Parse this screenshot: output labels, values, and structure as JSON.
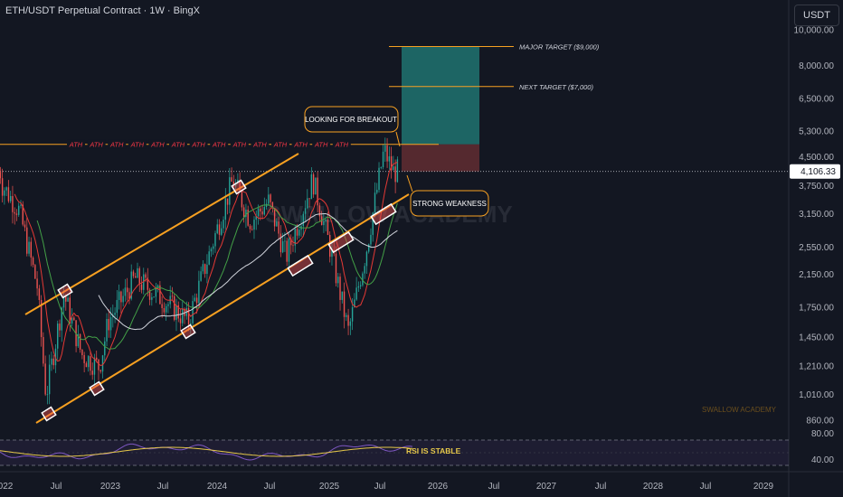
{
  "header": {
    "title": "ETH/USDT Perpetual Contract · 1W · BingX"
  },
  "currency_button": "USDT",
  "price_scale": {
    "ticks": [
      "10,000.00",
      "8,000.00",
      "6,500.00",
      "5,300.00",
      "4,500.00",
      "3,750.00",
      "3,150.00",
      "2,550.00",
      "2,150.00",
      "1,750.00",
      "1,450.00",
      "1,210.00",
      "1,010.00",
      "860.00"
    ],
    "current_price": "4,106.33"
  },
  "rsi_scale": {
    "ticks": [
      "80.00",
      "40.00"
    ]
  },
  "time_axis": {
    "labels": [
      "022",
      "Jul",
      "2023",
      "Jul",
      "2024",
      "Jul",
      "2025",
      "Jul",
      "2026",
      "Jul",
      "2027",
      "Jul",
      "2028",
      "Jul",
      "2029"
    ]
  },
  "annotations": {
    "major_target": "MAJOR TARGET ($9,000)",
    "next_target": "NEXT TARGET ($7,000)",
    "breakout": "LOOKING FOR BREAKOUT",
    "weakness": "STRONG WEAKNESS",
    "ath_label": "ATH",
    "ath_count": 14,
    "rsi": "RSI IS STABLE",
    "watermark_center": "SWALLOW ACADEMY",
    "watermark_corner": "SWALLOW ACADEMY"
  },
  "colors": {
    "background": "#131722",
    "bull": "#26a69a",
    "bear": "#ef5350",
    "channel": "#f7a021",
    "target_line": "#f7a021",
    "ath_text": "#f23645",
    "ma_red": "#e53935",
    "ma_green": "#43a047",
    "ma_white": "#d1d4dc",
    "rsi_line": "#7e57c2",
    "rsi_ma": "#e6c84a",
    "long_zone": "#26a69a",
    "short_zone": "#ef5350"
  },
  "chart_data": {
    "type": "candlestick",
    "title": "ETH/USDT Perpetual Contract · 1W · BingX",
    "ylim": [
      800,
      11000
    ],
    "y_scale": "log",
    "x_range": [
      "2022",
      "2029"
    ],
    "current_price": 4106.33,
    "targets": [
      {
        "label": "MAJOR TARGET ($9,000)",
        "value": 9000
      },
      {
        "label": "NEXT TARGET ($7,000)",
        "value": 7000
      }
    ],
    "ath_level": 4870,
    "weekly_closes_approx": [
      {
        "x": "2022-01",
        "y": 3800
      },
      {
        "x": "2022-03",
        "y": 3200
      },
      {
        "x": "2022-05",
        "y": 2000
      },
      {
        "x": "2022-06",
        "y": 1000
      },
      {
        "x": "2022-08",
        "y": 1900
      },
      {
        "x": "2022-10",
        "y": 1300
      },
      {
        "x": "2022-12",
        "y": 1200
      },
      {
        "x": "2023-01",
        "y": 1600
      },
      {
        "x": "2023-04",
        "y": 2100
      },
      {
        "x": "2023-07",
        "y": 1850
      },
      {
        "x": "2023-10",
        "y": 1600
      },
      {
        "x": "2023-12",
        "y": 2300
      },
      {
        "x": "2024-03",
        "y": 3900
      },
      {
        "x": "2024-05",
        "y": 3000
      },
      {
        "x": "2024-07",
        "y": 3400
      },
      {
        "x": "2024-09",
        "y": 2400
      },
      {
        "x": "2024-12",
        "y": 3900
      },
      {
        "x": "2025-02",
        "y": 2500
      },
      {
        "x": "2025-04",
        "y": 1500
      },
      {
        "x": "2025-06",
        "y": 2500
      },
      {
        "x": "2025-08",
        "y": 4700
      },
      {
        "x": "2025-09",
        "y": 4100
      }
    ],
    "rsi": {
      "ylim": [
        30,
        90
      ],
      "ticks": [
        80,
        40
      ],
      "annotation": "RSI IS STABLE"
    }
  }
}
